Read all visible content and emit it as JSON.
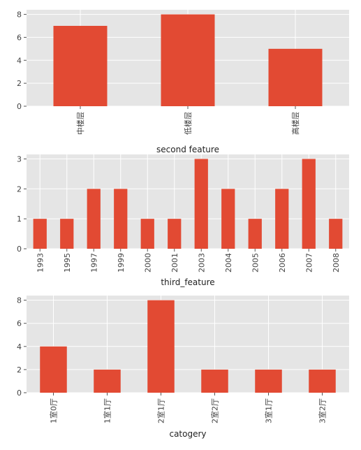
{
  "style": {
    "panel_background": "#e5e5e5",
    "grid_color": "#ffffff",
    "bar_color": "#e24a33",
    "text_color": "#444444"
  },
  "chart_data": [
    {
      "type": "bar",
      "categories": [
        "中楼层",
        "低楼层",
        "高楼层"
      ],
      "values": [
        7,
        8,
        5
      ],
      "xlabel": "second feature",
      "ylabel": "",
      "ylim": [
        0,
        8.4
      ],
      "yticks": [
        0,
        2,
        4,
        6,
        8
      ],
      "grid": true
    },
    {
      "type": "bar",
      "categories": [
        "1993",
        "1995",
        "1997",
        "1999",
        "2000",
        "2001",
        "2003",
        "2004",
        "2005",
        "2006",
        "2007",
        "2008"
      ],
      "values": [
        1,
        1,
        2,
        2,
        1,
        1,
        3,
        2,
        1,
        2,
        3,
        1
      ],
      "xlabel": "third_feature",
      "ylabel": "",
      "ylim": [
        0,
        3.15
      ],
      "yticks": [
        0,
        1,
        2,
        3
      ],
      "grid": true
    },
    {
      "type": "bar",
      "categories": [
        "1室0厅",
        "1室1厅",
        "2室1厅",
        "2室2厅",
        "3室1厅",
        "3室2厅"
      ],
      "values": [
        4,
        2,
        8,
        2,
        2,
        2
      ],
      "xlabel": "catogery",
      "ylabel": "",
      "ylim": [
        0,
        8.4
      ],
      "yticks": [
        0,
        2,
        4,
        6,
        8
      ],
      "grid": true
    }
  ]
}
